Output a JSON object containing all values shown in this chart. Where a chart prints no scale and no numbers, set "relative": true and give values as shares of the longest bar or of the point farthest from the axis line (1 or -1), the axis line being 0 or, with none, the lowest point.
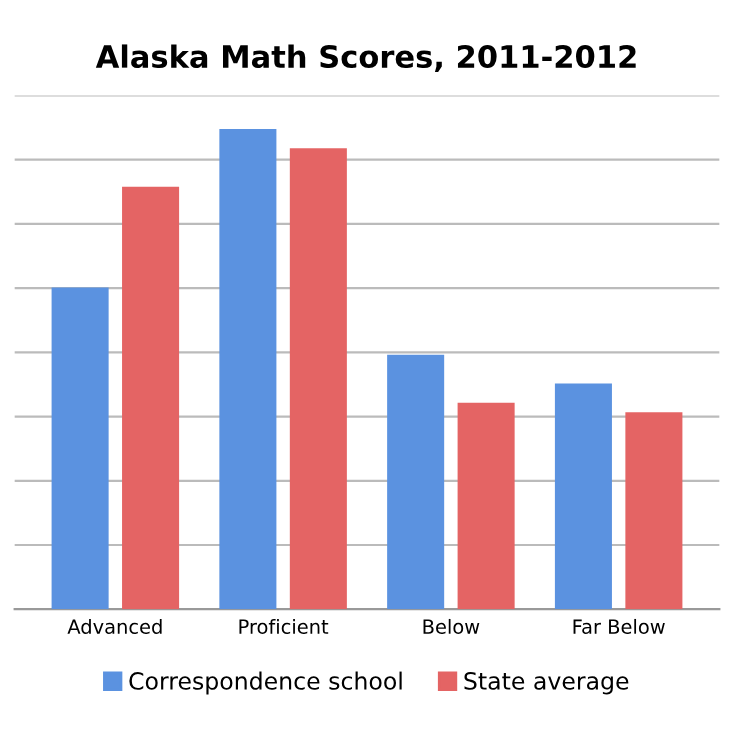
{
  "chart_data": {
    "type": "bar",
    "title": "Alaska Math Scores, 2011-2012",
    "categories": [
      "Advanced",
      "Proficient",
      "Below",
      "Far Below"
    ],
    "relative": true,
    "grid": "y",
    "legend": "bottom",
    "series": [
      {
        "name": "Correspondence school",
        "color": "#5b92e0",
        "values": [
          0.67,
          1.0,
          0.53,
          0.47
        ]
      },
      {
        "name": "State average",
        "color": "#e46464",
        "values": [
          0.88,
          0.96,
          0.43,
          0.41
        ]
      }
    ]
  }
}
